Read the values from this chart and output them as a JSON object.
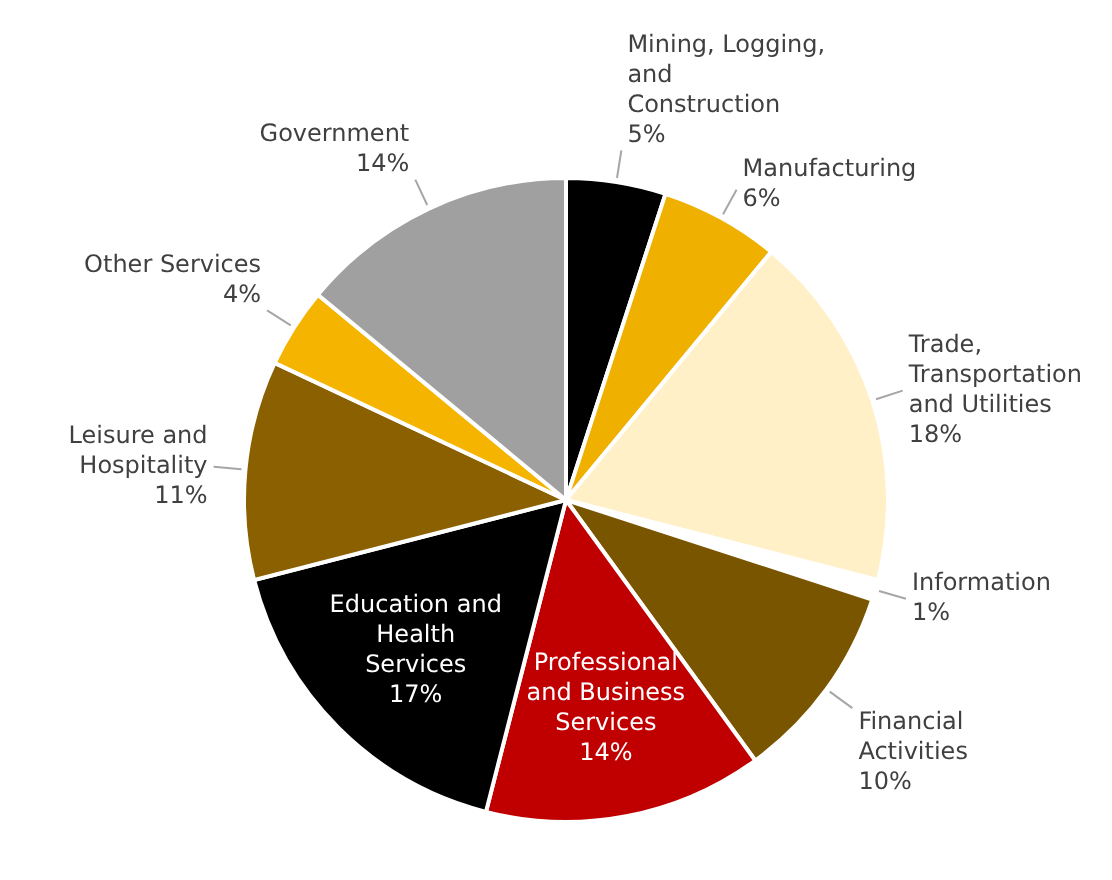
{
  "chart_data": {
    "type": "pie",
    "categories": [
      "Mining, Logging, and Construction",
      "Manufacturing",
      "Trade, Transportation and Utilities",
      "Information",
      "Financial Activities",
      "Professional and Business Services",
      "Education and Health Services",
      "Leisure and Hospitality",
      "Other Services",
      "Government"
    ],
    "values": [
      5,
      6,
      18,
      1,
      10,
      14,
      17,
      11,
      4,
      14
    ],
    "value_labels": [
      "5%",
      "6%",
      "18%",
      "1%",
      "10%",
      "14%",
      "17%",
      "11%",
      "4%",
      "14%"
    ],
    "colors": [
      "#000000",
      "#f0b000",
      "#fff0c8",
      "#ffffff",
      "#7a5500",
      "#c00000",
      "#000000",
      "#8a6000",
      "#f5b400",
      "#a0a0a0"
    ],
    "legend": false
  }
}
